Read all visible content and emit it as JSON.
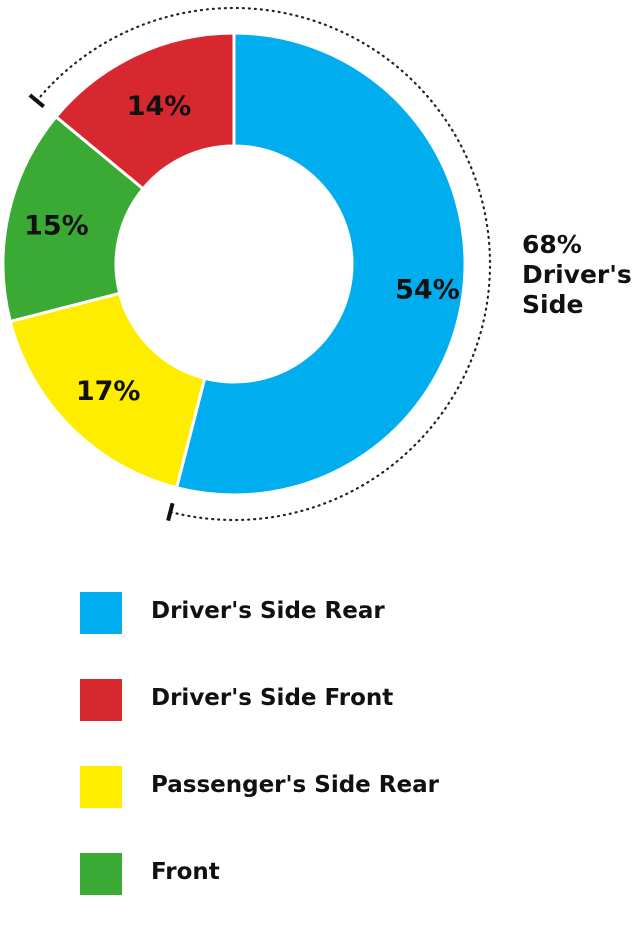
{
  "chart_data": {
    "type": "pie",
    "variant": "donut",
    "categories": [
      "Driver's Side Rear",
      "Passenger's Side Rear",
      "Front",
      "Driver's Side Front"
    ],
    "values": [
      54,
      17,
      15,
      14
    ],
    "data_labels": [
      "54%",
      "17%",
      "15%",
      "14%"
    ],
    "colors": [
      "#00aeef",
      "#ffed00",
      "#3aaa35",
      "#d7282f"
    ],
    "legend_placement": "bottom",
    "legend": [
      {
        "label": "Driver's Side Rear",
        "color": "#00aeef"
      },
      {
        "label": "Driver's Side Front",
        "color": "#d7282f"
      },
      {
        "label": "Passenger's Side Rear",
        "color": "#ffed00"
      },
      {
        "label": "Front",
        "color": "#3aaa35"
      }
    ],
    "annotation": {
      "lines": [
        "68%",
        "Driver's",
        "Side"
      ],
      "spans_categories": [
        "Driver's Side Rear",
        "Driver's Side Front"
      ],
      "value": 68
    }
  }
}
